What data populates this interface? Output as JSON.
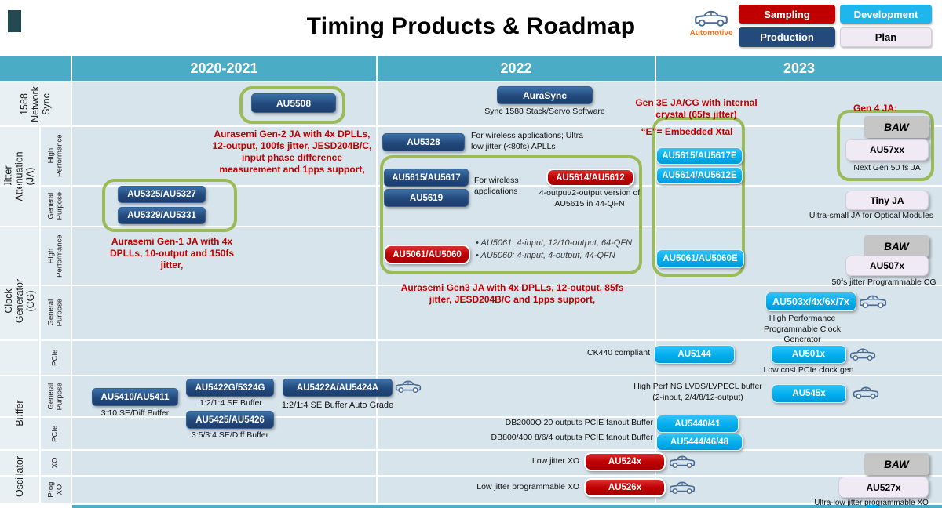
{
  "header": {
    "title": "Timing Products & Roadmap",
    "automotive_label": "Automotive",
    "legend": {
      "sampling": "Sampling",
      "development": "Development",
      "production": "Production",
      "plan": "Plan"
    }
  },
  "colors": {
    "sampling_red": "#C00000",
    "development_cyan": "#00AEEF",
    "production_blue": "#1F4E79",
    "plan_lavender": "#EFEAF4",
    "baw_gray": "#C6C6C6",
    "header_teal": "#4BACC6",
    "highlight_green": "#9BBB59",
    "annotation_red": "#C00000",
    "automotive_orange": "#ED7D31"
  },
  "columns": {
    "c1": "2020-2021",
    "c2": "2022",
    "c3": "2023"
  },
  "rows": {
    "sync": {
      "category": "1588 Network Sync"
    },
    "ja": {
      "category": "Jitter Attenuation (JA)",
      "subs": {
        "hp": "High Performance",
        "gp": "General Purpose"
      }
    },
    "cg": {
      "category": "Clock Generator (CG)",
      "subs": {
        "hp": "High Performance",
        "gp": "General Purpose",
        "pcie": "PCIe"
      }
    },
    "buffer": {
      "category": "Buffer",
      "subs": {
        "gp": "General Purpose",
        "pcie": "PCIe"
      }
    },
    "osc": {
      "category": "Oscillator",
      "subs": {
        "xo": "XO",
        "progxo": "Prog XO"
      }
    }
  },
  "products": {
    "au5508": "AU5508",
    "aurasync": "AuraSync",
    "au5328": "AU5328",
    "au5615_5617": "AU5615/AU5617",
    "au5619": "AU5619",
    "au5614_5612": "AU5614/AU5612",
    "au5615_5617e": "AU5615/AU5617E",
    "au5614_5612e": "AU5614/AU5612E",
    "baw": "BAW",
    "au57xx": "AU57xx",
    "tiny_ja": "Tiny JA",
    "au5325_5327": "AU5325/AU5327",
    "au5329_5331": "AU5329/AU5331",
    "au5061_5060": "AU5061/AU5060",
    "au5061_5060e": "AU5061/AU5060E",
    "au507x": "AU507x",
    "au503x": "AU503x/4x/6x/7x",
    "au5144": "AU5144",
    "au501x": "AU501x",
    "au5410_5411": "AU5410/AU5411",
    "au5422g": "AU5422G/5324G",
    "au5425_5426": "AU5425/AU5426",
    "au5422a": "AU5422A/AU5424A",
    "au545x": "AU545x",
    "au5440_41": "AU5440/41",
    "au5444_46_48": "AU5444/46/48",
    "au524x": "AU524x",
    "au526x": "AU526x",
    "au527x": "AU527x"
  },
  "annotations": {
    "gen2": "Aurasemi Gen-2 JA with 4x DPLLs,  12-output, 100fs jitter, JESD204B/C, input phase difference measurement and 1pps support,",
    "gen1": "Aurasemi Gen-1 JA with 4x DPLLs, 10-output and 150fs jitter,",
    "gen3": "Aurasemi Gen3 JA with 4x DPLLs, 12-output, 85fs jitter, JESD204B/C and 1pps support,",
    "gen3e": "Gen 3E JA/CG with internal crystal (65fs jitter)",
    "embedded_xtal": "“E”= Embedded Xtal",
    "gen4": "Gen 4 JA:"
  },
  "notes": {
    "aurasync_note": "Sync 1588 Stack/Servo Software",
    "au5328_note": "For wireless applications; Ultra low jitter (<80fs) APLLs",
    "wireless_note": "For wireless applications",
    "au5614_note": "4-output/2-output version of AU5615 in 44-QFN",
    "next_gen_note": "Next Gen 50 fs JA",
    "tiny_ja_note": "Ultra-small JA for Optical Modules",
    "au5061_bullet1": "• AU5061: 4-input, 12/10-output, 64-QFN",
    "au5061_bullet2": "• AU5060: 4-input, 4-output, 44-QFN",
    "au507x_note": "50fs jitter Programmable CG",
    "au503x_note": "High Performance Programmable Clock Generator",
    "ck440_note": "CK440 compliant",
    "au501x_note": "Low cost PCIe clock gen",
    "au5410_note": "3:10 SE/Diff Buffer",
    "au5422g_note": "1:2/1:4 SE Buffer",
    "au5425_note": "3:5/3:4 SE/Diff Buffer",
    "au5422a_note": "1:2/1:4 SE Buffer Auto Grade",
    "lvds_note": "High Perf NG LVDS/LVPECL buffer (2-input, 2/4/8/12-output)",
    "db2000_note": "DB2000Q  20 outputs PCIE fanout Buffer",
    "db800_note": "DB800/400 8/6/4 outputs PCIE fanout Buffer",
    "xo_note": "Low jitter XO",
    "progxo_note": "Low jitter programmable XO",
    "au527x_note": "Ultra-low jitter programmable XO"
  }
}
